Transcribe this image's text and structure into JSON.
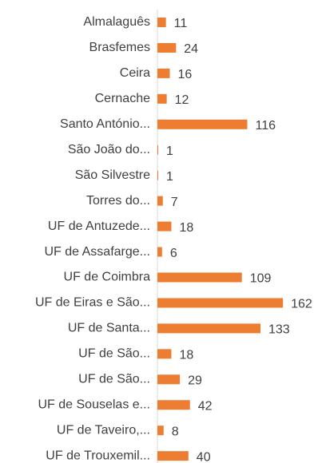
{
  "chart_data": {
    "type": "barh",
    "categories": [
      "Almalaguês",
      "Brasfemes",
      "Ceira",
      "Cernache",
      "Santo António...",
      "São João do...",
      "São Silvestre",
      "Torres do...",
      "UF de Antuzede...",
      "UF de Assafarge...",
      "UF de Coimbra",
      "UF de Eiras e São...",
      "UF de Santa...",
      "UF de São...",
      "UF de São...",
      "UF de Souselas e...",
      "UF de Taveiro,...",
      "UF de Trouxemil..."
    ],
    "values": [
      11,
      24,
      16,
      12,
      116,
      1,
      1,
      7,
      18,
      6,
      109,
      162,
      133,
      18,
      29,
      42,
      8,
      40
    ],
    "color": "#ed7d31"
  }
}
